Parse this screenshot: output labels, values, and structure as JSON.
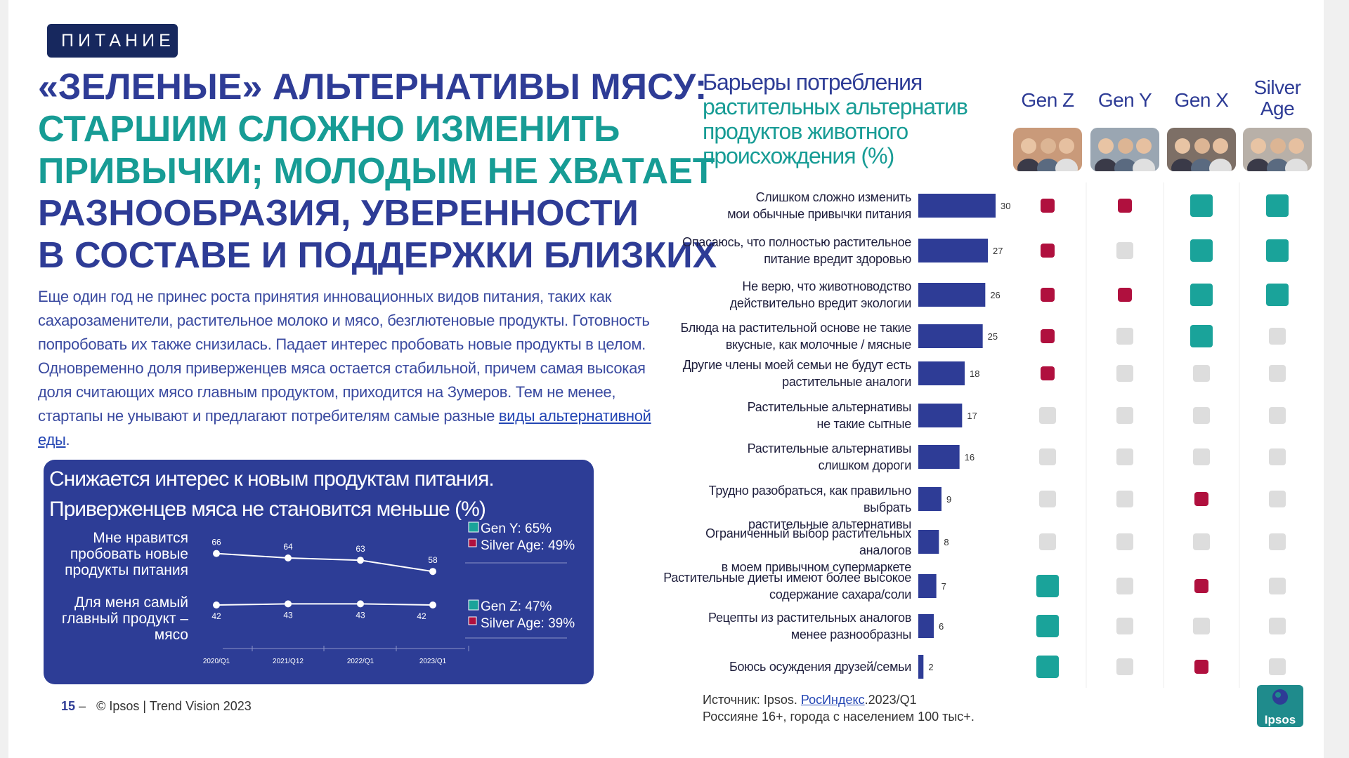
{
  "section_tag": "ПИТАНИЕ",
  "headline": {
    "line1": "«ЗЕЛЕНЫЕ» АЛЬТЕРНАТИВЫ МЯСУ:",
    "line2": "СТАРШИМ СЛОЖНО ИЗМЕНИТЬ",
    "line3": "ПРИВЫЧКИ; МОЛОДЫМ НЕ ХВАТАЕТ",
    "line4": "РАЗНООБРАЗИЯ, УВЕРЕННОСТИ",
    "line5": "В СОСТАВЕ И ПОДДЕРЖКИ БЛИЗКИХ"
  },
  "body": {
    "text": "Еще один год не принес роста принятия инновационных видов питания, таких как сахарозаменители, растительное молоко и мясо, безглютеновые продукты. Готовность попробовать их также снизилась. Падает интерес пробовать новые продукты в целом. Одновременно доля приверженцев мяса остается стабильной, причем самая высокая доля считающих мясо главным продуктом, приходится на Зумеров. Тем не менее, стартапы не унывают и предлагают потребителям самые разные ",
    "link": "виды альтернативной еды",
    "end": "."
  },
  "trend_box": {
    "title_line1": "Снижается интерес к новым продуктам питания.",
    "title_line2": "Приверженцев мяса не становится меньше (%)",
    "row1_label": [
      "Мне нравится",
      "пробовать новые",
      "продукты питания"
    ],
    "row2_label": [
      "Для меня самый",
      "главный продукт –",
      "мясо"
    ],
    "row1_legend": [
      "Gen Y: 65%",
      "Silver Age: 49%"
    ],
    "row2_legend": [
      "Gen Z: 47%",
      "Silver Age: 39%"
    ]
  },
  "chart_data": [
    {
      "type": "line",
      "categories": [
        "2020/Q1",
        "2021/Q12",
        "2022/Q1",
        "2023/Q1"
      ],
      "series": [
        {
          "name": "Мне нравится пробовать новые продукты питания",
          "values": [
            66,
            64,
            63,
            58
          ]
        },
        {
          "name": "Для меня самый главный продукт – мясо",
          "values": [
            42,
            43,
            43,
            42
          ]
        }
      ],
      "title": "Снижается интерес к новым продуктам питания. Приверженцев мяса не становится меньше (%)"
    },
    {
      "type": "bar",
      "title": "Барьеры потребления растительных альтернатив продуктов животного происхождения (%)",
      "categories": [
        [
          "Слишком сложно изменить",
          "мои обычные привычки питания"
        ],
        [
          "Опасаюсь, что полностью растительное",
          "питание вредит здоровью"
        ],
        [
          "Не верю, что животноводство",
          "действительно вредит экологии"
        ],
        [
          "Блюда на растительной основе не такие",
          "вкусные, как молочные / мясные"
        ],
        [
          "Другие члены моей семьи не будут есть",
          "растительные аналоги"
        ],
        [
          "Растительные альтернативы",
          "не такие сытные"
        ],
        [
          "Растительные альтернативы",
          "слишком дороги"
        ],
        [
          "Трудно разобраться, как правильно выбрать",
          "растительные альтернативы"
        ],
        [
          "Ограниченный выбор растительных аналогов",
          "в моем привычном супермаркете"
        ],
        [
          "Растительные диеты имеют более высокое",
          "содержание сахара/соли"
        ],
        [
          "Рецепты из растительных аналогов",
          "менее разнообразны"
        ],
        [
          "Боюсь осуждения друзей/семьи"
        ]
      ],
      "values": [
        30,
        27,
        26,
        25,
        18,
        17,
        16,
        9,
        8,
        7,
        6,
        2
      ],
      "generations": [
        "Gen Z",
        "Gen Y",
        "Gen X",
        "Silver Age"
      ],
      "generation_headers": [
        [
          "Gen Z"
        ],
        [
          "Gen Y"
        ],
        [
          "Gen X"
        ],
        [
          "Silver",
          "Age"
        ]
      ],
      "generation_markers": [
        [
          "low",
          "low",
          "high",
          "high"
        ],
        [
          "low",
          "neutral",
          "high",
          "high"
        ],
        [
          "low",
          "low",
          "high",
          "high"
        ],
        [
          "low",
          "neutral",
          "high",
          "neutral"
        ],
        [
          "low",
          "neutral",
          "neutral",
          "neutral"
        ],
        [
          "neutral",
          "neutral",
          "neutral",
          "neutral"
        ],
        [
          "neutral",
          "neutral",
          "neutral",
          "neutral"
        ],
        [
          "neutral",
          "neutral",
          "low",
          "neutral"
        ],
        [
          "neutral",
          "neutral",
          "neutral",
          "neutral"
        ],
        [
          "high",
          "neutral",
          "low",
          "neutral"
        ],
        [
          "high",
          "neutral",
          "neutral",
          "neutral"
        ],
        [
          "high",
          "neutral",
          "low",
          "neutral"
        ]
      ]
    }
  ],
  "right_title": {
    "line1": "Барьеры потребления",
    "line2": "растительных альтернатив",
    "line3": "продуктов животного",
    "line4": "происхождения (%)"
  },
  "colors": {
    "bar": "#2e3c96",
    "marker_low": "#b0103e",
    "marker_high": "#1aa39a",
    "marker_neutral": "#dddddd",
    "navy": "#2e3c96",
    "teal": "#179c95",
    "box_bg": "#2d3d96"
  },
  "footer": {
    "page": "15",
    "dash": "–",
    "copyright": "© Ipsos | Trend Vision 2023"
  },
  "source": {
    "prefix": "Источник: Ipsos. ",
    "link": "РосИндекс",
    "suffix": ".2023/Q1",
    "line2": "Россияне 16+, города с населением 100 тыс+."
  },
  "logo": "Ipsos"
}
